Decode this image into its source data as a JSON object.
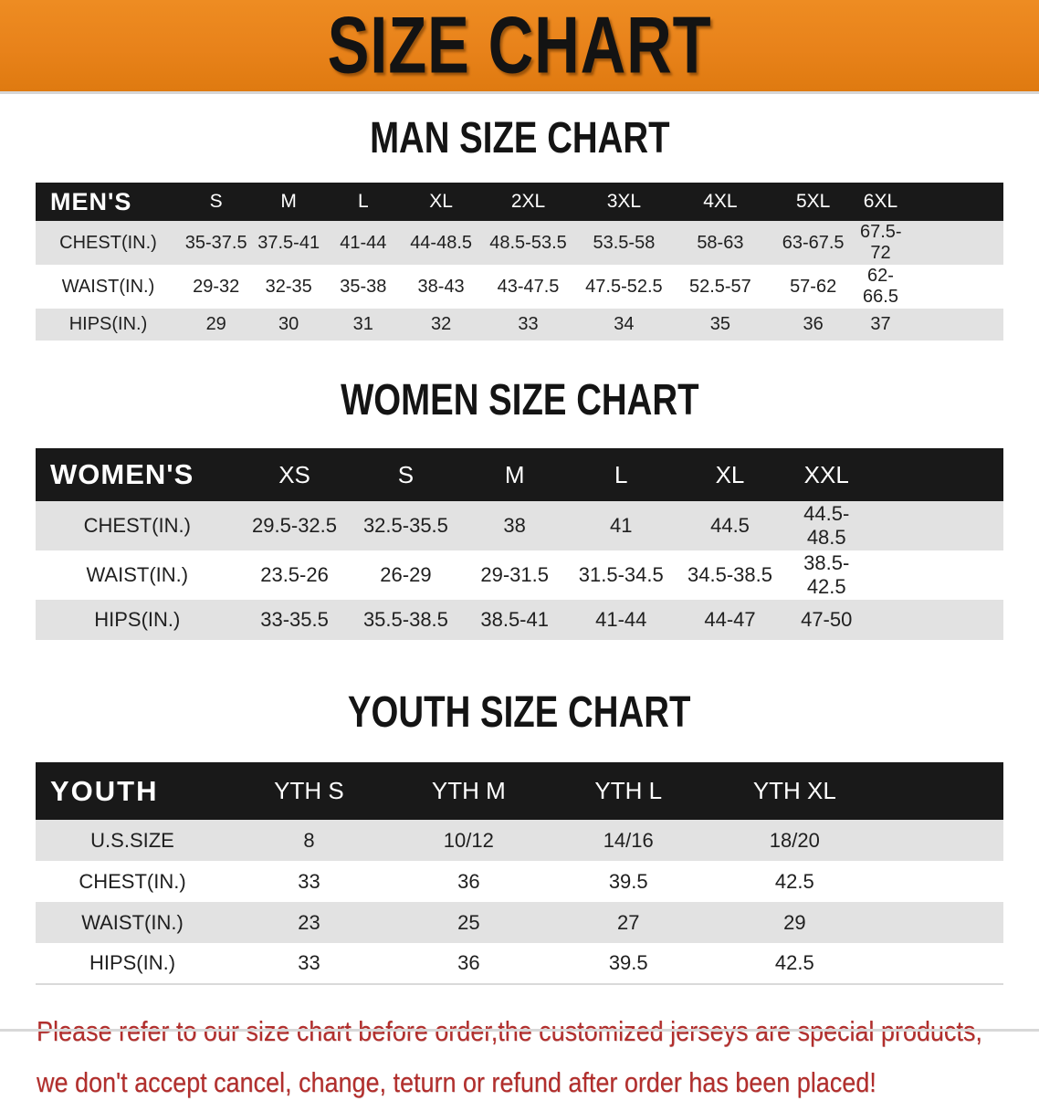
{
  "banner": {
    "title": "SIZE CHART",
    "bg_color": "#e8821a",
    "text_color": "#131313"
  },
  "sections": [
    {
      "title": "MAN SIZE CHART",
      "table": {
        "header_label": "MEN'S",
        "columns": [
          "S",
          "M",
          "L",
          "XL",
          "2XL",
          "3XL",
          "4XL",
          "5XL",
          "6XL"
        ],
        "rows": [
          {
            "label": "CHEST(IN.)",
            "values": [
              "35-37.5",
              "37.5-41",
              "41-44",
              "44-48.5",
              "48.5-53.5",
              "53.5-58",
              "58-63",
              "63-67.5",
              "67.5-72"
            ]
          },
          {
            "label": "WAIST(IN.)",
            "values": [
              "29-32",
              "32-35",
              "35-38",
              "38-43",
              "43-47.5",
              "47.5-52.5",
              "52.5-57",
              "57-62",
              "62-66.5"
            ]
          },
          {
            "label": "HIPS(IN.)",
            "values": [
              "29",
              "30",
              "31",
              "32",
              "33",
              "34",
              "35",
              "36",
              "37"
            ]
          }
        ]
      }
    },
    {
      "title": "WOMEN SIZE CHART",
      "table": {
        "header_label": "WOMEN'S",
        "columns": [
          "XS",
          "S",
          "M",
          "L",
          "XL",
          "XXL"
        ],
        "rows": [
          {
            "label": "CHEST(IN.)",
            "values": [
              "29.5-32.5",
              "32.5-35.5",
              "38",
              "41",
              "44.5",
              "44.5-48.5"
            ]
          },
          {
            "label": "WAIST(IN.)",
            "values": [
              "23.5-26",
              "26-29",
              "29-31.5",
              "31.5-34.5",
              "34.5-38.5",
              "38.5-42.5"
            ]
          },
          {
            "label": "HIPS(IN.)",
            "values": [
              "33-35.5",
              "35.5-38.5",
              "38.5-41",
              "41-44",
              "44-47",
              "47-50"
            ]
          }
        ]
      }
    },
    {
      "title": "YOUTH SIZE CHART",
      "table": {
        "header_label": "YOUTH",
        "columns": [
          "YTH S",
          "YTH M",
          "YTH L",
          "YTH XL"
        ],
        "rows": [
          {
            "label": "U.S.SIZE",
            "values": [
              "8",
              "10/12",
              "14/16",
              "18/20"
            ]
          },
          {
            "label": "CHEST(IN.)",
            "values": [
              "33",
              "36",
              "39.5",
              "42.5"
            ]
          },
          {
            "label": "WAIST(IN.)",
            "values": [
              "23",
              "25",
              "27",
              "29"
            ]
          },
          {
            "label": "HIPS(IN.)",
            "values": [
              "33",
              "36",
              "39.5",
              "42.5"
            ]
          }
        ]
      }
    }
  ],
  "disclaimer": {
    "line1": "Please refer to our size chart before order,the customized jerseys are special products,",
    "line2": "we don't accept cancel, change, teturn or refund after order has been placed!",
    "color": "#b22e2c"
  },
  "colors": {
    "table_header_bg": "#191919",
    "table_header_text": "#ffffff",
    "row_stripe": "#e2e2e2"
  }
}
